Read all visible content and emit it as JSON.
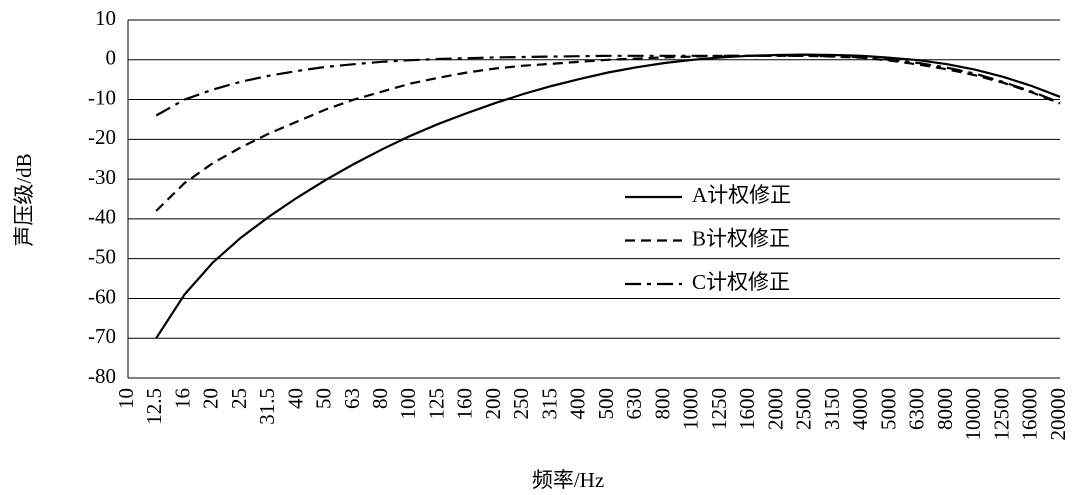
{
  "chart_data": {
    "type": "line",
    "xlabel": "频率/Hz",
    "ylabel": "声压级/dB",
    "categories": [
      "10",
      "12.5",
      "16",
      "20",
      "25",
      "31.5",
      "40",
      "50",
      "63",
      "80",
      "100",
      "125",
      "160",
      "200",
      "250",
      "315",
      "400",
      "500",
      "630",
      "800",
      "1000",
      "1250",
      "1600",
      "2000",
      "2500",
      "3150",
      "4000",
      "5000",
      "6300",
      "8000",
      "10000",
      "12500",
      "16000",
      "20000"
    ],
    "series": [
      {
        "name": "A计权修正",
        "color": "#000000",
        "dash": "solid",
        "values": [
          null,
          -70,
          -59,
          -51,
          -44.7,
          -39.4,
          -34.6,
          -30.2,
          -26.2,
          -22.5,
          -19.1,
          -16.1,
          -13.4,
          -10.9,
          -8.6,
          -6.6,
          -4.8,
          -3.2,
          -1.9,
          -0.8,
          0,
          0.6,
          1,
          1.2,
          1.3,
          1.2,
          1,
          0.5,
          -0.1,
          -1.1,
          -2.5,
          -4.3,
          -6.6,
          -9.3
        ]
      },
      {
        "name": "B计权修正",
        "color": "#000000",
        "dash": "dashed",
        "values": [
          null,
          -38,
          -31,
          -26,
          -22,
          -18.5,
          -15.5,
          -12.5,
          -10,
          -8,
          -6,
          -4.5,
          -3.2,
          -2.2,
          -1.5,
          -1,
          -0.5,
          0,
          0.3,
          0.6,
          0.8,
          1,
          1,
          1,
          1,
          0.8,
          0.5,
          -0.2,
          -1.2,
          -2.4,
          -3.9,
          -5.8,
          -8.2,
          -11
        ]
      },
      {
        "name": "C计权修正",
        "color": "#000000",
        "dash": "dashdot",
        "values": [
          null,
          -14,
          -10,
          -7.5,
          -5.5,
          -4,
          -2.8,
          -1.8,
          -1.1,
          -0.5,
          -0.1,
          0.2,
          0.4,
          0.6,
          0.7,
          0.8,
          0.9,
          1,
          1,
          1,
          1,
          1,
          1,
          1,
          1,
          0.9,
          0.6,
          0,
          -0.8,
          -2,
          -3.5,
          -5.6,
          -8,
          -10.8
        ]
      }
    ],
    "ylim": [
      -80,
      10
    ],
    "yticks": [
      -80,
      -70,
      -60,
      -50,
      -40,
      -30,
      -20,
      -10,
      0,
      10
    ],
    "grid": true
  }
}
